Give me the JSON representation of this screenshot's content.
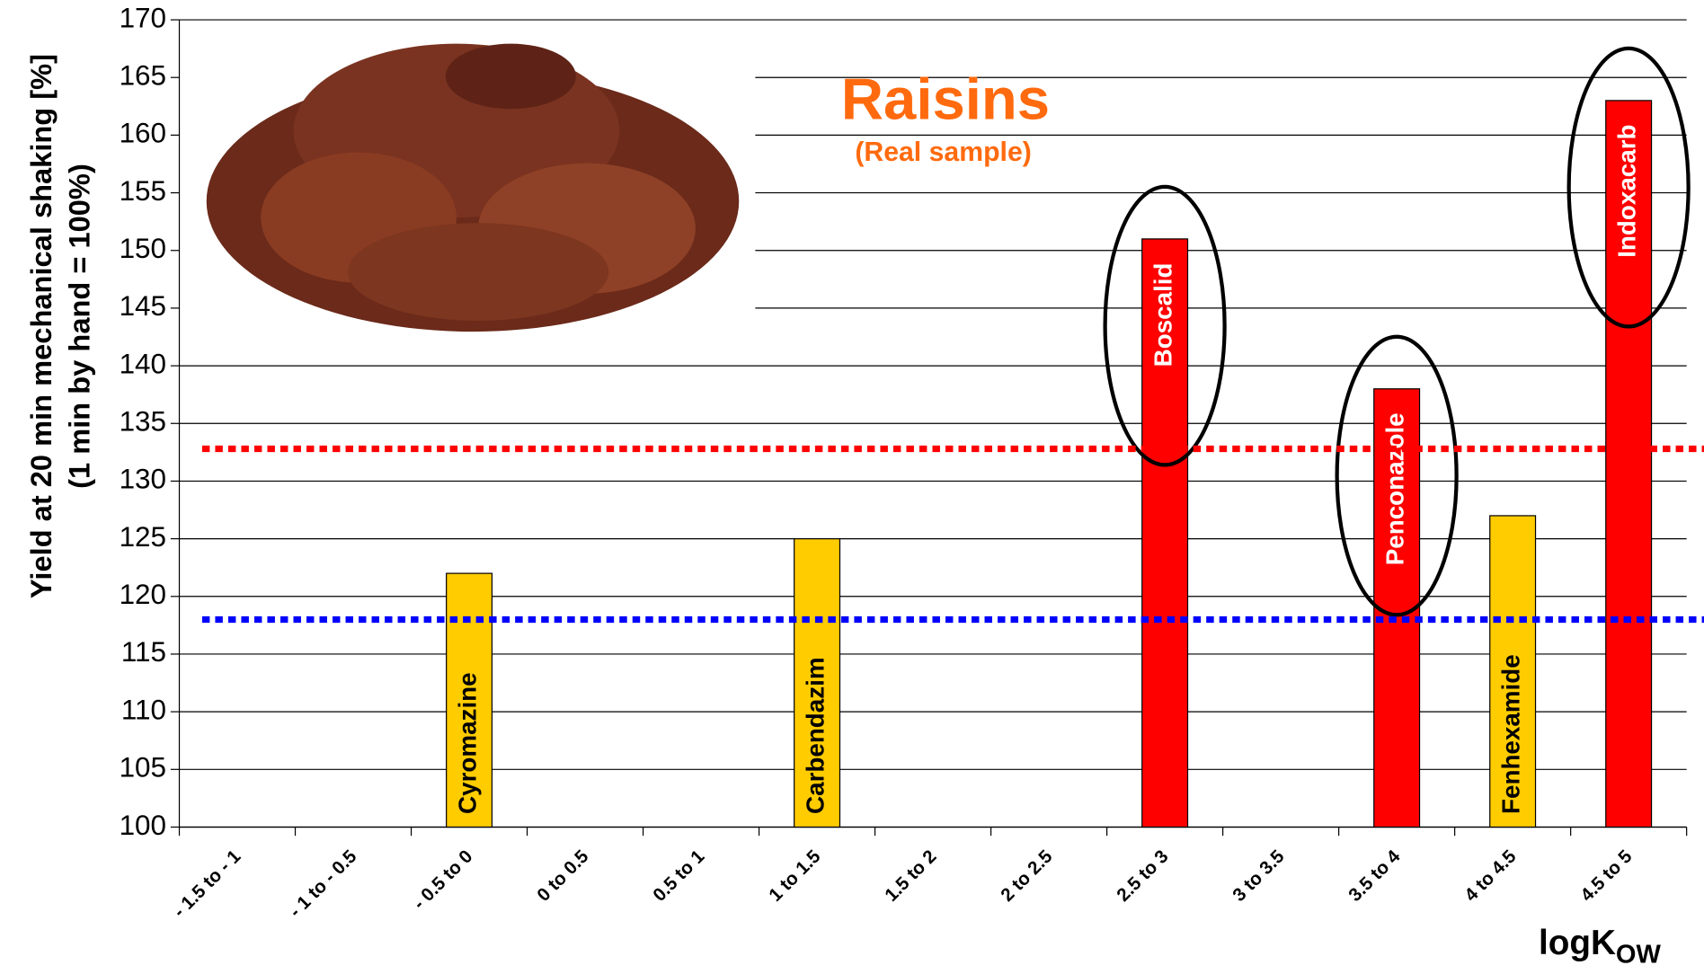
{
  "chart_data": {
    "type": "bar",
    "title": "Raisins",
    "subtitle": "(Real sample)",
    "y_label": [
      "Yield at 20 min mechanical shaking [%]",
      "(1 min by hand = 100%)"
    ],
    "x_label": {
      "main": "logK",
      "sub": "OW"
    },
    "categories": [
      "- 1.5 to - 1",
      "- 1 to - 0.5",
      "- 0.5 to 0",
      "0 to 0.5",
      "0.5 to 1",
      "1 to 1.5",
      "1.5 to 2",
      "2 to 2.5",
      "2.5 to 3",
      "3 to 3.5",
      "3.5 to 4",
      "4 to 4.5",
      "4.5 to 5"
    ],
    "values": [
      null,
      null,
      122,
      null,
      null,
      125,
      null,
      null,
      151,
      null,
      138,
      127,
      163
    ],
    "bar_labels": [
      null,
      null,
      "Cyromazine",
      null,
      null,
      "Carbendazim",
      null,
      null,
      "Boscalid",
      null,
      "Penconazole",
      "Fenhexamide",
      "Indoxacarb"
    ],
    "colors": [
      null,
      null,
      "#ffcc00",
      null,
      null,
      "#ffcc00",
      null,
      null,
      "#ff0000",
      null,
      "#ff0000",
      "#ffcc00",
      "#ff0000"
    ],
    "reference_lines": [
      {
        "value": 132.8,
        "color": "#ff0000"
      },
      {
        "value": 118,
        "color": "#0000ff"
      }
    ],
    "ylim": [
      100,
      170
    ],
    "yticks": [
      100,
      105,
      110,
      115,
      120,
      125,
      130,
      135,
      140,
      145,
      150,
      155,
      160,
      165,
      170
    ],
    "grid": true
  }
}
